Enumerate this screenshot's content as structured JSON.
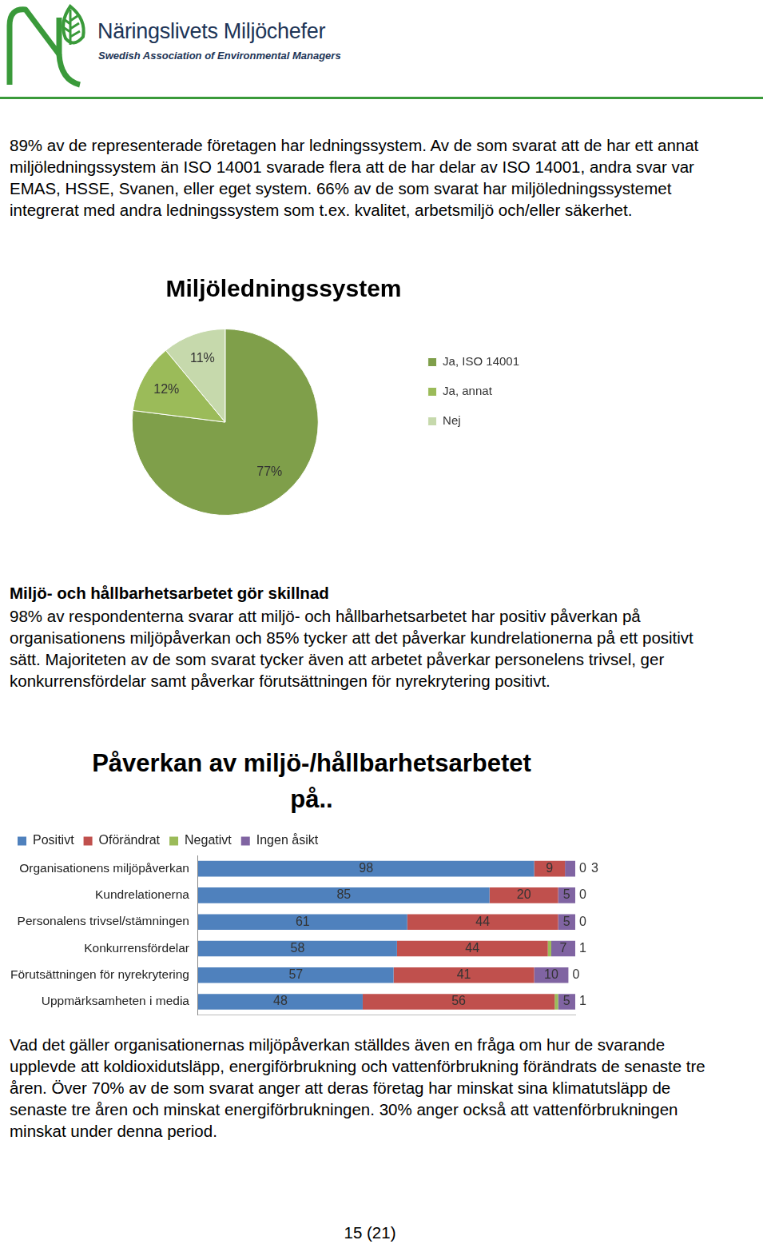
{
  "header": {
    "title": "Näringslivets Miljöchefer",
    "subtitle": "Swedish Association of Environmental Managers"
  },
  "intro": "89% av de representerade företagen har ledningssystem. Av de som svarat att de har ett annat miljöledningssystem än ISO 14001 svarade flera att de har delar av ISO 14001, andra svar var EMAS, HSSE, Svanen, eller eget system. 66% av de som svarat har miljöledningssystemet integrerat med andra ledningssystem som t.ex. kvalitet, arbetsmiljö och/eller säkerhet.",
  "section": {
    "heading": "Miljö- och hållbarhetsarbetet gör skillnad",
    "text": "98% av respondenterna svarar att miljö- och hållbarhetsarbetet har positiv påverkan på organisationens miljöpåverkan och 85% tycker att det påverkar kundrelationerna på ett positivt sätt. Majoriteten av de som svarat tycker även att arbetet påverkar personelens trivsel, ger konkurrensfördelar samt påverkar förutsättningen för nyrekrytering positivt."
  },
  "closing": "Vad det gäller organisationernas miljöpåverkan ställdes även en fråga om hur de svarande upplevde att koldioxidutsläpp, energiförbrukning och vattenförbrukning förändrats de senaste tre åren. Över 70% av de som svarat anger att deras företag har minskat sina klimatutsläpp de senaste tre åren och minskat energiförbrukningen. 30% anger också att vattenförbrukningen minskat under denna period.",
  "page": "15 (21)",
  "chart_data": [
    {
      "type": "pie",
      "title": "Miljöledningssystem",
      "categories": [
        "Ja, ISO 14001",
        "Ja, annat",
        "Nej"
      ],
      "values": [
        77,
        12,
        11
      ],
      "value_labels": [
        "77%",
        "12%",
        "11%"
      ],
      "colors": [
        "#7f9f4a",
        "#9bbb59",
        "#c6d9ac"
      ],
      "legend": "right",
      "data_labels": true
    },
    {
      "type": "bar",
      "title": "Påverkan av miljö-/hållbarhetsarbetet på..",
      "orientation": "horizontal",
      "stacked": true,
      "data_labels": true,
      "grid": false,
      "legend": "top",
      "tick_labels": "y",
      "categories": [
        "Organisationens miljöpåverkan",
        "Kundrelationerna",
        "Personalens trivsel/stämningen",
        "Konkurrensfördelar",
        "Förutsättningen för nyrekrytering",
        "Uppmärksamheten i media"
      ],
      "xlim": [
        0,
        110
      ],
      "series": [
        {
          "name": "Positivt",
          "color": "#4f81bd",
          "values": [
            98,
            85,
            61,
            58,
            57,
            48
          ]
        },
        {
          "name": "Oförändrat",
          "color": "#c0504d",
          "values": [
            9,
            20,
            44,
            44,
            41,
            56
          ]
        },
        {
          "name": "Negativt",
          "color": "#9bbb59",
          "values": [
            0,
            0,
            0,
            1,
            0,
            1
          ]
        },
        {
          "name": "Ingen åsikt",
          "color": "#8064a2",
          "values": [
            3,
            5,
            5,
            7,
            10,
            5
          ]
        }
      ]
    }
  ]
}
